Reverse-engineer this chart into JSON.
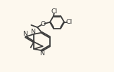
{
  "bg_color": "#fdf8ee",
  "line_color": "#3c3c3c",
  "line_width": 1.3,
  "text_color": "#3c3c3c",
  "font_size": 6.8,
  "xlim": [
    0,
    9.5
  ],
  "ylim": [
    0,
    6.2
  ]
}
